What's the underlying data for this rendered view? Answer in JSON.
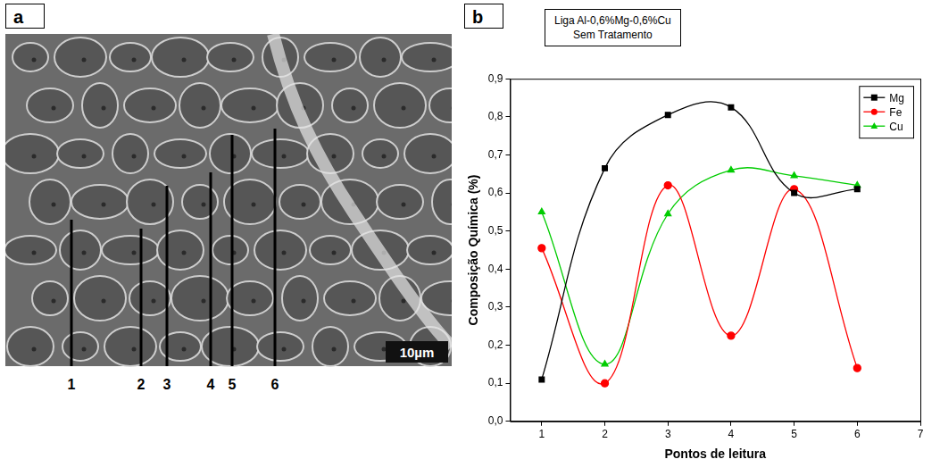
{
  "micrograph": {
    "panel_label": "a",
    "reading_points": [
      "1",
      "2",
      "3",
      "4",
      "5",
      "6"
    ],
    "scale_bar": "10µm"
  },
  "chart_data": {
    "type": "line",
    "panel_label": "b",
    "title": "Liga Al-0,6%Mg-0,6%Cu",
    "subtitle": "Sem Tratamento",
    "x_label": "Pontos de leitura",
    "y_label": "Composição Química (%)",
    "x": [
      1,
      2,
      3,
      4,
      5,
      6
    ],
    "series": [
      {
        "name": "Mg",
        "color": "#000000",
        "marker": "square",
        "values": [
          0.11,
          0.665,
          0.805,
          0.825,
          0.6,
          0.61
        ]
      },
      {
        "name": "Fe",
        "color": "#ff0000",
        "marker": "circle",
        "values": [
          0.455,
          0.1,
          0.62,
          0.225,
          0.61,
          0.14
        ]
      },
      {
        "name": "Cu",
        "color": "#00cc00",
        "marker": "triangle",
        "values": [
          0.55,
          0.15,
          0.545,
          0.66,
          0.645,
          0.62
        ]
      }
    ],
    "xlim": [
      0.5,
      7
    ],
    "xticks": [
      1,
      2,
      3,
      4,
      5,
      6,
      7
    ],
    "ylim": [
      0,
      0.9
    ],
    "yticks": [
      {
        "value": 0,
        "label": "0,0"
      },
      {
        "value": 0.1,
        "label": "0,1"
      },
      {
        "value": 0.2,
        "label": "0,2"
      },
      {
        "value": 0.3,
        "label": "0,3"
      },
      {
        "value": 0.4,
        "label": "0,4"
      },
      {
        "value": 0.5,
        "label": "0,5"
      },
      {
        "value": 0.6,
        "label": "0,6"
      },
      {
        "value": 0.7,
        "label": "0,7"
      },
      {
        "value": 0.8,
        "label": "0,8"
      },
      {
        "value": 0.9,
        "label": "0,9"
      }
    ],
    "grid": false,
    "legend": "upper right"
  }
}
